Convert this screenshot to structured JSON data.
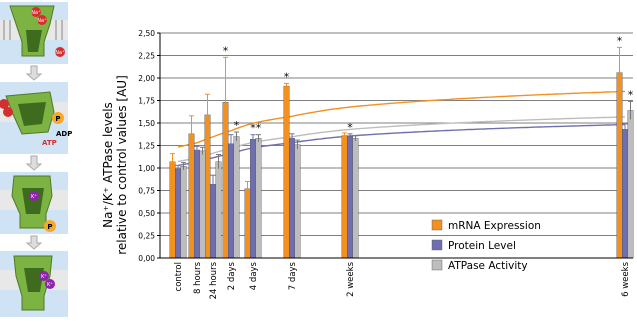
{
  "diagram": {
    "na_label": "Na⁺",
    "k_label": "K⁺",
    "p_label": "P",
    "atp_label": "ATP",
    "adp_label": "ADP"
  },
  "chart_data": {
    "type": "bar",
    "ylabel_line1": "Na⁺/K⁺ ATPase levels",
    "ylabel_line2": "relative to control values [AU]",
    "ylim": [
      0,
      2.5
    ],
    "yticks": [
      "0,00",
      "0,25",
      "0,50",
      "0,75",
      "1,00",
      "1,25",
      "1,50",
      "1,75",
      "2,00",
      "2,25",
      "2,50"
    ],
    "grid": true,
    "legend_position": "center-right",
    "categories": [
      "control",
      "8 hours",
      "24 hours",
      "2 days",
      "4 days",
      "7 days",
      "2 weeks",
      "6 weeks"
    ],
    "category_time_days": [
      0,
      0.33,
      1,
      2,
      4,
      7,
      14,
      42
    ],
    "series": [
      {
        "name": "mRNA Expression",
        "color": "#f29120",
        "values": [
          1.07,
          1.38,
          1.59,
          1.73,
          0.77,
          1.91,
          1.36,
          2.06
        ],
        "errors": [
          0.09,
          0.2,
          0.23,
          0.5,
          0.08,
          0.03,
          0.03,
          0.28
        ]
      },
      {
        "name": "Protein Level",
        "color": "#6f6fb0",
        "values": [
          0.99,
          1.2,
          0.82,
          1.27,
          1.32,
          1.33,
          1.35,
          1.43
        ],
        "errors": [
          0.04,
          0.04,
          0.1,
          0.1,
          0.05,
          0.05,
          0.03,
          0.06
        ]
      },
      {
        "name": "ATPase Activity",
        "color": "#bdbdbd",
        "values": [
          1.02,
          1.19,
          1.07,
          1.35,
          1.33,
          1.26,
          1.33,
          1.64
        ],
        "errors": [
          0.04,
          0.04,
          0.08,
          0.05,
          0.04,
          0.05,
          0.03,
          0.1
        ]
      }
    ],
    "significance_markers": [
      {
        "category": "2 days",
        "series": "mRNA Expression",
        "label": "*"
      },
      {
        "category": "2 days",
        "series": "ATPase Activity",
        "label": "*"
      },
      {
        "category": "4 days",
        "series": "Protein Level",
        "label": "*"
      },
      {
        "category": "4 days",
        "series": "ATPase Activity",
        "label": "*"
      },
      {
        "category": "7 days",
        "series": "mRNA Expression",
        "label": "*"
      },
      {
        "category": "2 weeks",
        "series": "Protein Level",
        "label": "*"
      },
      {
        "category": "6 weeks",
        "series": "mRNA Expression",
        "label": "*"
      },
      {
        "category": "6 weeks",
        "series": "ATPase Activity",
        "label": "*"
      }
    ]
  }
}
